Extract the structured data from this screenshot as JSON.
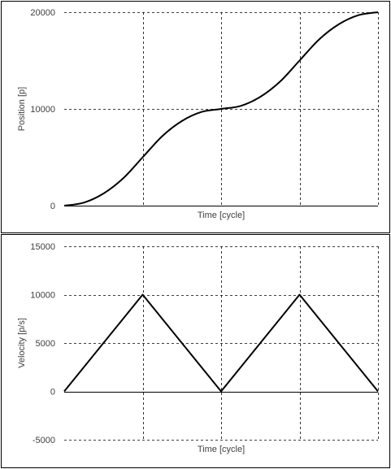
{
  "chart_data": [
    {
      "type": "line",
      "xlabel": "Time [cycle]",
      "ylabel": "Position [p]",
      "xlim": [
        0,
        4
      ],
      "ylim": [
        0,
        20000
      ],
      "yticks": [
        0,
        10000,
        20000
      ],
      "xgrid": [
        1,
        2,
        3,
        4
      ],
      "grid": "dashed",
      "series": [
        {
          "x": [
            0,
            0.25,
            0.5,
            0.75,
            1,
            1.25,
            1.5,
            1.75,
            2,
            2.25,
            2.5,
            2.75,
            3,
            3.25,
            3.5,
            3.75,
            4
          ],
          "values": [
            0,
            313,
            1250,
            2813,
            5000,
            7188,
            8750,
            9688,
            10000,
            10313,
            11250,
            12813,
            15000,
            17188,
            18750,
            19688,
            20000
          ]
        }
      ]
    },
    {
      "type": "line",
      "xlabel": "Time [cycle]",
      "ylabel": "Velocity [p/s]",
      "xlim": [
        0,
        4
      ],
      "ylim": [
        -5000,
        15000
      ],
      "yticks": [
        -5000,
        0,
        5000,
        10000,
        15000
      ],
      "xgrid": [
        1,
        2,
        3,
        4
      ],
      "grid": "dashed",
      "series": [
        {
          "x": [
            0,
            1,
            2,
            3,
            4
          ],
          "values": [
            0,
            10000,
            0,
            10000,
            0
          ]
        }
      ]
    }
  ]
}
